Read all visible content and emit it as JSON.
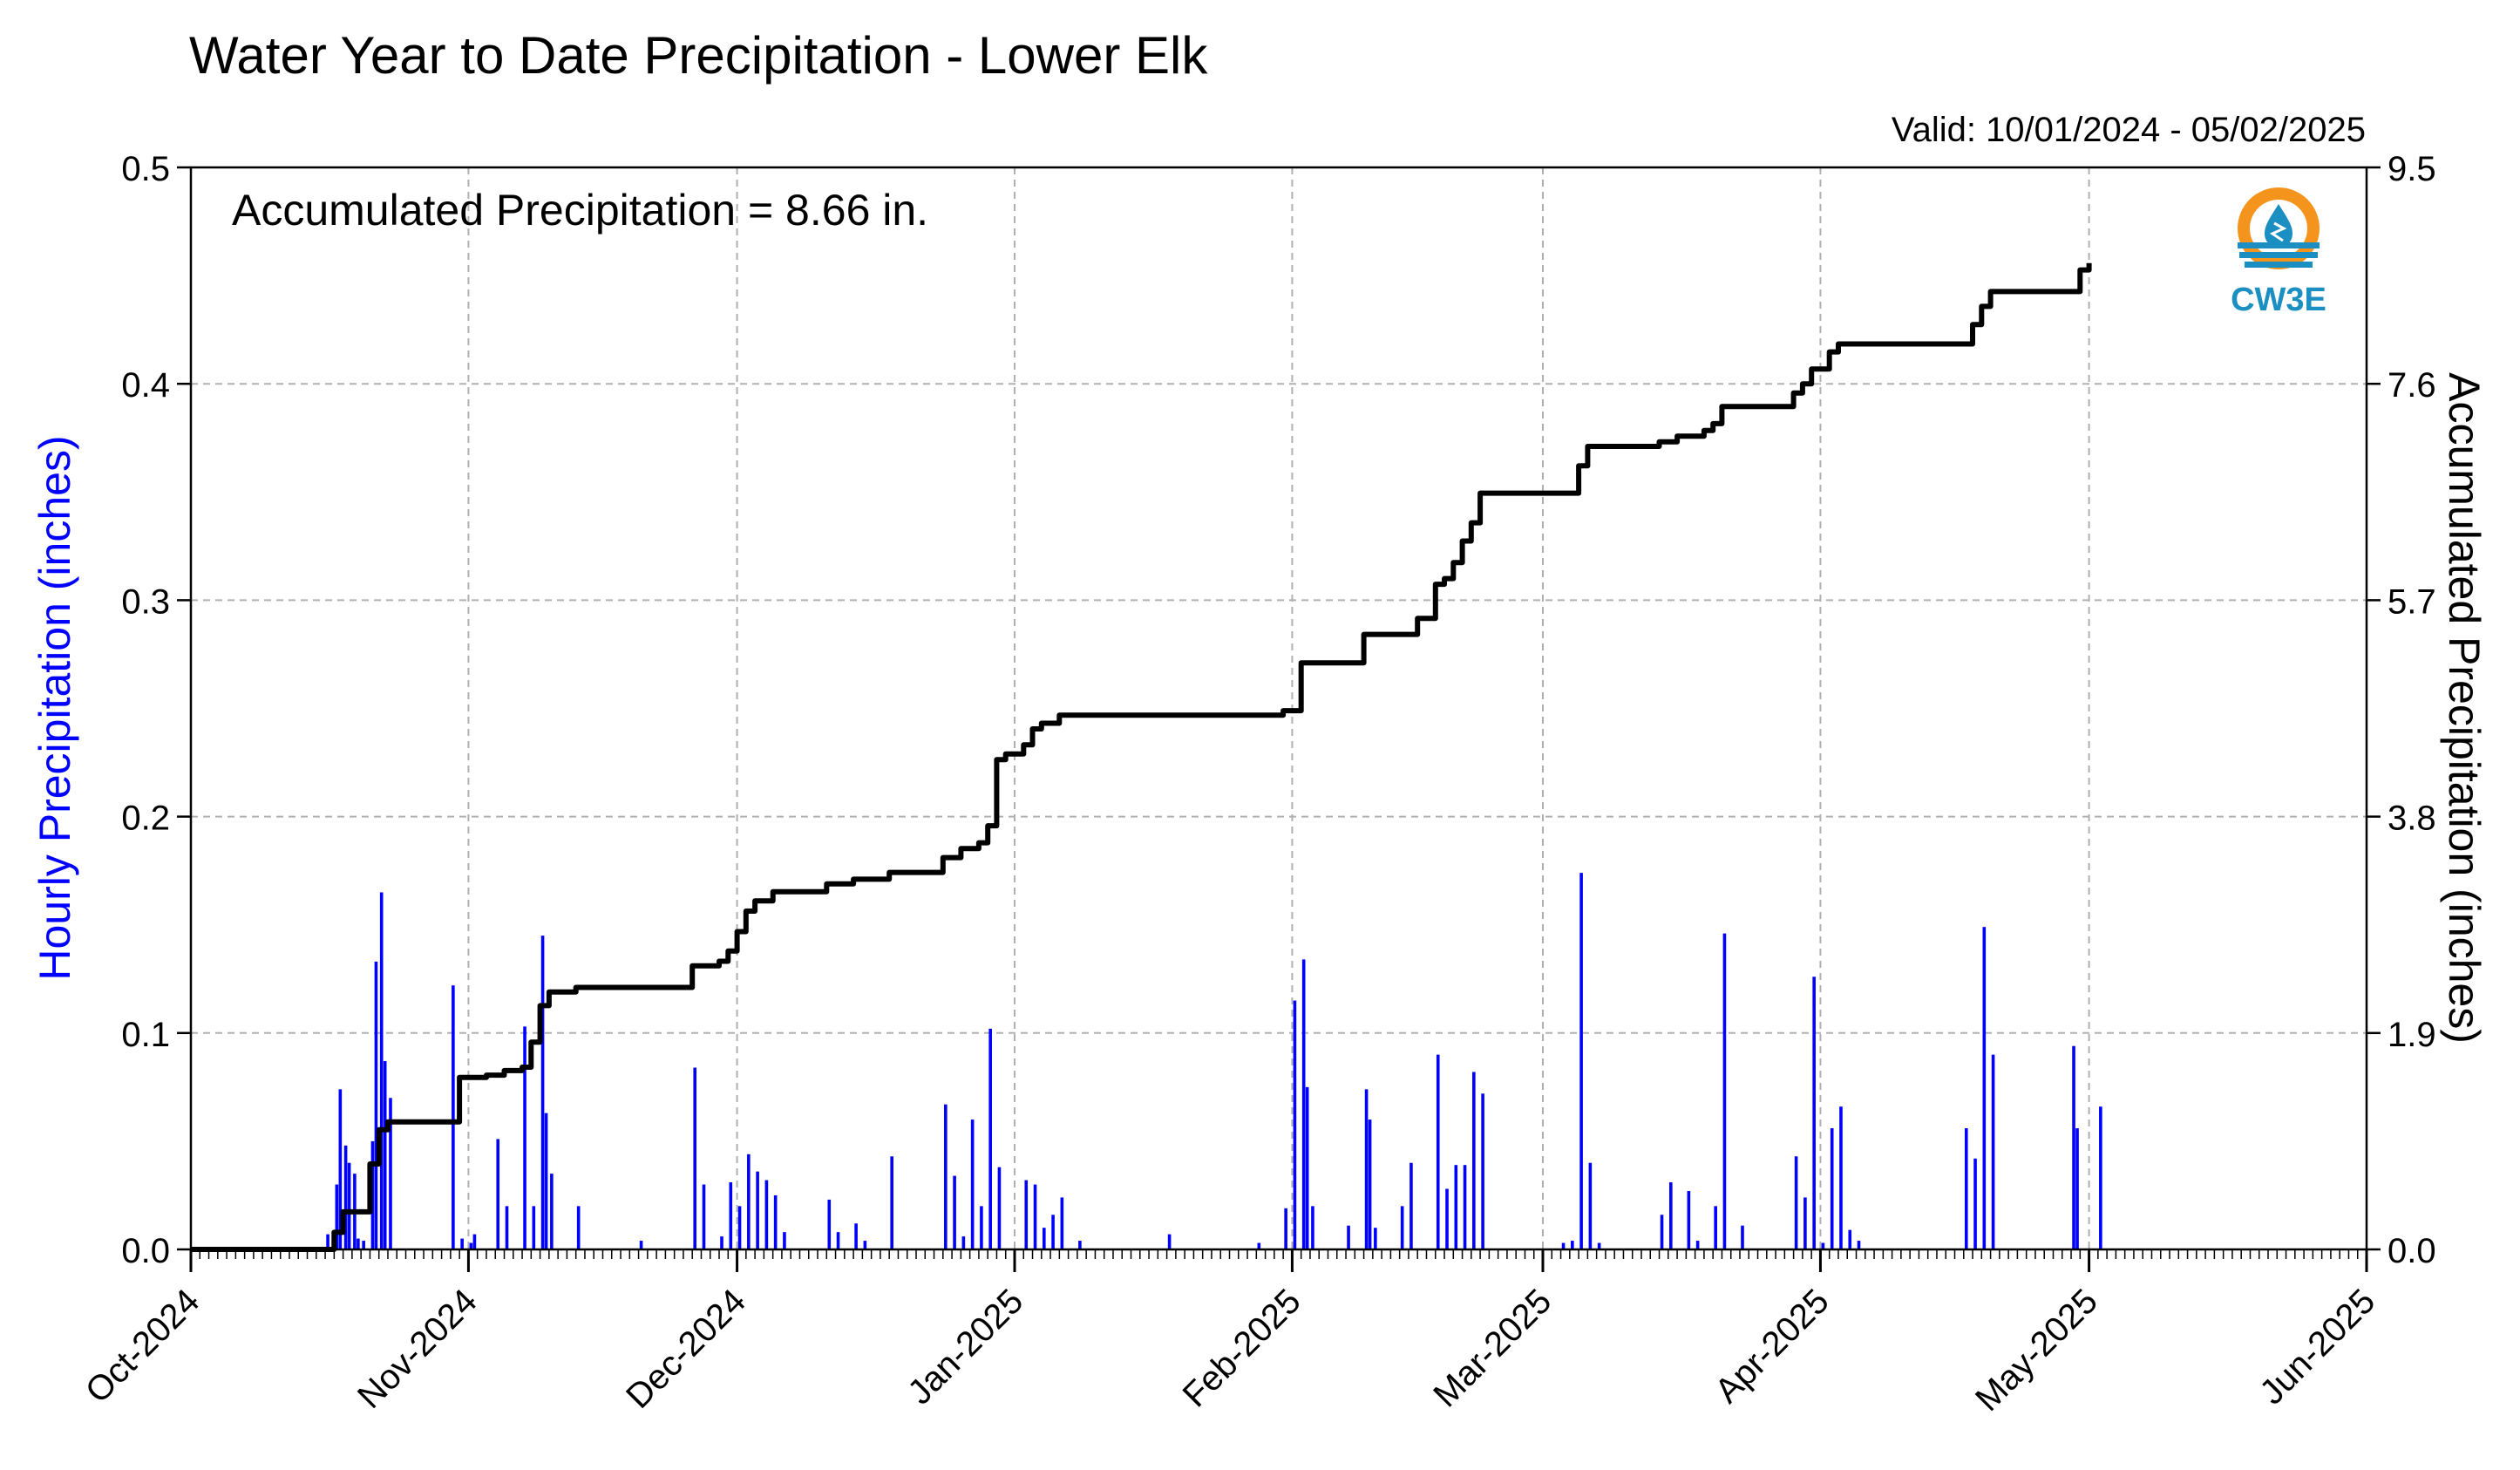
{
  "colors": {
    "hourly_bars": "#0000ff",
    "accumulated_line": "#000000",
    "grid": "#b0b0b0",
    "left_axis_label": "#0000ff",
    "logo_orange": "#f5941d",
    "logo_blue": "#1b8ec2"
  },
  "logo": {
    "text": "CW3E",
    "icon": "water-drop-sun-logo"
  },
  "chart_data": {
    "type": "bar+line",
    "title": "Water Year to Date Precipitation - Lower Elk",
    "valid_label": "Valid: 10/01/2024 - 05/02/2025",
    "annotation": "Accumulated Precipitation = 8.66 in.",
    "ylabel_left": "Hourly Precipitation (inches)",
    "ylabel_right": "Accumulated Precipitation (inches)",
    "x_range": [
      "2024-10-01",
      "2025-06-01"
    ],
    "ylim_left": [
      0,
      0.5
    ],
    "ylim_right": [
      0,
      9.5
    ],
    "grid": true,
    "xticks": [
      {
        "date": "2024-10-01",
        "label": "Oct-2024"
      },
      {
        "date": "2024-11-01",
        "label": "Nov-2024"
      },
      {
        "date": "2024-12-01",
        "label": "Dec-2024"
      },
      {
        "date": "2025-01-01",
        "label": "Jan-2025"
      },
      {
        "date": "2025-02-01",
        "label": "Feb-2025"
      },
      {
        "date": "2025-03-01",
        "label": "Mar-2025"
      },
      {
        "date": "2025-04-01",
        "label": "Apr-2025"
      },
      {
        "date": "2025-05-01",
        "label": "May-2025"
      },
      {
        "date": "2025-06-01",
        "label": "Jun-2025"
      }
    ],
    "yticks_left": [
      "0.0",
      "0.1",
      "0.2",
      "0.3",
      "0.4",
      "0.5"
    ],
    "yticks_right": [
      "0.0",
      "1.9",
      "3.8",
      "5.7",
      "7.6",
      "9.5"
    ],
    "series": [
      {
        "name": "Hourly Precipitation",
        "type": "bar",
        "points": [
          [
            "2024-10-16",
            0.007
          ],
          [
            "2024-10-17",
            0.03
          ],
          [
            "2024-10-17",
            0.074
          ],
          [
            "2024-10-18",
            0.048
          ],
          [
            "2024-10-18",
            0.04
          ],
          [
            "2024-10-19",
            0.035
          ],
          [
            "2024-10-19",
            0.005
          ],
          [
            "2024-10-20",
            0.004
          ],
          [
            "2024-10-21",
            0.05
          ],
          [
            "2024-10-21",
            0.133
          ],
          [
            "2024-10-22",
            0.165
          ],
          [
            "2024-10-22",
            0.087
          ],
          [
            "2024-10-23",
            0.07
          ],
          [
            "2024-10-30",
            0.122
          ],
          [
            "2024-10-31",
            0.005
          ],
          [
            "2024-11-01",
            0.003
          ],
          [
            "2024-11-01",
            0.007
          ],
          [
            "2024-11-04",
            0.051
          ],
          [
            "2024-11-05",
            0.02
          ],
          [
            "2024-11-07",
            0.103
          ],
          [
            "2024-11-08",
            0.02
          ],
          [
            "2024-11-09",
            0.145
          ],
          [
            "2024-11-09",
            0.063
          ],
          [
            "2024-11-10",
            0.035
          ],
          [
            "2024-11-13",
            0.02
          ],
          [
            "2024-11-20",
            0.004
          ],
          [
            "2024-11-26",
            0.084
          ],
          [
            "2024-11-27",
            0.03
          ],
          [
            "2024-11-29",
            0.006
          ],
          [
            "2024-11-30",
            0.031
          ],
          [
            "2024-12-01",
            0.02
          ],
          [
            "2024-12-02",
            0.044
          ],
          [
            "2024-12-03",
            0.036
          ],
          [
            "2024-12-04",
            0.032
          ],
          [
            "2024-12-05",
            0.025
          ],
          [
            "2024-12-06",
            0.008
          ],
          [
            "2024-12-11",
            0.023
          ],
          [
            "2024-12-12",
            0.008
          ],
          [
            "2024-12-14",
            0.012
          ],
          [
            "2024-12-15",
            0.004
          ],
          [
            "2024-12-18",
            0.043
          ],
          [
            "2024-12-24",
            0.067
          ],
          [
            "2024-12-25",
            0.034
          ],
          [
            "2024-12-26",
            0.006
          ],
          [
            "2024-12-27",
            0.06
          ],
          [
            "2024-12-28",
            0.02
          ],
          [
            "2024-12-29",
            0.102
          ],
          [
            "2024-12-30",
            0.038
          ],
          [
            "2025-01-02",
            0.032
          ],
          [
            "2025-01-03",
            0.03
          ],
          [
            "2025-01-04",
            0.01
          ],
          [
            "2025-01-05",
            0.016
          ],
          [
            "2025-01-06",
            0.024
          ],
          [
            "2025-01-08",
            0.004
          ],
          [
            "2025-01-18",
            0.007
          ],
          [
            "2025-01-28",
            0.003
          ],
          [
            "2025-01-31",
            0.019
          ],
          [
            "2025-02-01",
            0.115
          ],
          [
            "2025-02-02",
            0.134
          ],
          [
            "2025-02-02",
            0.075
          ],
          [
            "2025-02-03",
            0.02
          ],
          [
            "2025-02-07",
            0.011
          ],
          [
            "2025-02-09",
            0.074
          ],
          [
            "2025-02-09",
            0.06
          ],
          [
            "2025-02-10",
            0.01
          ],
          [
            "2025-02-13",
            0.02
          ],
          [
            "2025-02-14",
            0.04
          ],
          [
            "2025-02-17",
            0.09
          ],
          [
            "2025-02-18",
            0.028
          ],
          [
            "2025-02-19",
            0.039
          ],
          [
            "2025-02-20",
            0.039
          ],
          [
            "2025-02-21",
            0.082
          ],
          [
            "2025-02-22",
            0.072
          ],
          [
            "2025-03-03",
            0.003
          ],
          [
            "2025-03-04",
            0.004
          ],
          [
            "2025-03-05",
            0.174
          ],
          [
            "2025-03-06",
            0.04
          ],
          [
            "2025-03-07",
            0.003
          ],
          [
            "2025-03-14",
            0.016
          ],
          [
            "2025-03-15",
            0.031
          ],
          [
            "2025-03-17",
            0.027
          ],
          [
            "2025-03-18",
            0.004
          ],
          [
            "2025-03-20",
            0.02
          ],
          [
            "2025-03-21",
            0.146
          ],
          [
            "2025-03-23",
            0.011
          ],
          [
            "2025-03-29",
            0.043
          ],
          [
            "2025-03-30",
            0.024
          ],
          [
            "2025-03-31",
            0.126
          ],
          [
            "2025-04-01",
            0.003
          ],
          [
            "2025-04-02",
            0.056
          ],
          [
            "2025-04-03",
            0.066
          ],
          [
            "2025-04-04",
            0.009
          ],
          [
            "2025-04-05",
            0.004
          ],
          [
            "2025-04-17",
            0.056
          ],
          [
            "2025-04-18",
            0.042
          ],
          [
            "2025-04-19",
            0.149
          ],
          [
            "2025-04-20",
            0.09
          ],
          [
            "2025-04-29",
            0.094
          ],
          [
            "2025-04-29",
            0.056
          ],
          [
            "2025-05-02",
            0.066
          ]
        ]
      },
      {
        "name": "Accumulated Precipitation",
        "type": "step-line",
        "points": [
          [
            "2024-10-01",
            0.0
          ],
          [
            "2024-10-16",
            0.0
          ],
          [
            "2024-10-17",
            0.15
          ],
          [
            "2024-10-18",
            0.33
          ],
          [
            "2024-10-20",
            0.33
          ],
          [
            "2024-10-21",
            0.45
          ],
          [
            "2024-10-21",
            0.75
          ],
          [
            "2024-10-22",
            1.05
          ],
          [
            "2024-10-23",
            1.12
          ],
          [
            "2024-10-30",
            1.12
          ],
          [
            "2024-10-31",
            1.51
          ],
          [
            "2024-11-03",
            1.53
          ],
          [
            "2024-11-05",
            1.57
          ],
          [
            "2024-11-07",
            1.6
          ],
          [
            "2024-11-08",
            1.82
          ],
          [
            "2024-11-09",
            1.87
          ],
          [
            "2024-11-09",
            2.14
          ],
          [
            "2024-11-10",
            2.26
          ],
          [
            "2024-11-13",
            2.3
          ],
          [
            "2024-11-25",
            2.3
          ],
          [
            "2024-11-26",
            2.49
          ],
          [
            "2024-11-29",
            2.53
          ],
          [
            "2024-11-30",
            2.62
          ],
          [
            "2024-12-01",
            2.79
          ],
          [
            "2024-12-02",
            2.97
          ],
          [
            "2024-12-03",
            3.06
          ],
          [
            "2024-12-05",
            3.14
          ],
          [
            "2024-12-10",
            3.14
          ],
          [
            "2024-12-11",
            3.21
          ],
          [
            "2024-12-14",
            3.25
          ],
          [
            "2024-12-17",
            3.25
          ],
          [
            "2024-12-18",
            3.31
          ],
          [
            "2024-12-23",
            3.31
          ],
          [
            "2024-12-24",
            3.44
          ],
          [
            "2024-12-26",
            3.52
          ],
          [
            "2024-12-28",
            3.57
          ],
          [
            "2024-12-29",
            3.72
          ],
          [
            "2024-12-30",
            4.11
          ],
          [
            "2024-12-30",
            4.3
          ],
          [
            "2024-12-31",
            4.35
          ],
          [
            "2025-01-02",
            4.43
          ],
          [
            "2025-01-03",
            4.57
          ],
          [
            "2025-01-04",
            4.62
          ],
          [
            "2025-01-06",
            4.69
          ],
          [
            "2025-01-30",
            4.69
          ],
          [
            "2025-01-31",
            4.73
          ],
          [
            "2025-02-01",
            4.73
          ],
          [
            "2025-02-02",
            5.09
          ],
          [
            "2025-02-02",
            5.15
          ],
          [
            "2025-02-08",
            5.15
          ],
          [
            "2025-02-09",
            5.4
          ],
          [
            "2025-02-14",
            5.4
          ],
          [
            "2025-02-15",
            5.54
          ],
          [
            "2025-02-17",
            5.84
          ],
          [
            "2025-02-18",
            5.89
          ],
          [
            "2025-02-19",
            6.03
          ],
          [
            "2025-02-20",
            6.22
          ],
          [
            "2025-02-21",
            6.38
          ],
          [
            "2025-02-22",
            6.64
          ],
          [
            "2025-03-04",
            6.64
          ],
          [
            "2025-03-05",
            6.88
          ],
          [
            "2025-03-06",
            7.05
          ],
          [
            "2025-03-13",
            7.05
          ],
          [
            "2025-03-14",
            7.09
          ],
          [
            "2025-03-16",
            7.14
          ],
          [
            "2025-03-19",
            7.19
          ],
          [
            "2025-03-20",
            7.25
          ],
          [
            "2025-03-21",
            7.4
          ],
          [
            "2025-03-28",
            7.4
          ],
          [
            "2025-03-29",
            7.52
          ],
          [
            "2025-03-30",
            7.6
          ],
          [
            "2025-03-31",
            7.73
          ],
          [
            "2025-04-02",
            7.88
          ],
          [
            "2025-04-03",
            7.95
          ],
          [
            "2025-04-17",
            7.95
          ],
          [
            "2025-04-18",
            8.12
          ],
          [
            "2025-04-19",
            8.28
          ],
          [
            "2025-04-20",
            8.41
          ],
          [
            "2025-04-29",
            8.41
          ],
          [
            "2025-04-30",
            8.6
          ],
          [
            "2025-05-01",
            8.66
          ]
        ]
      }
    ]
  }
}
